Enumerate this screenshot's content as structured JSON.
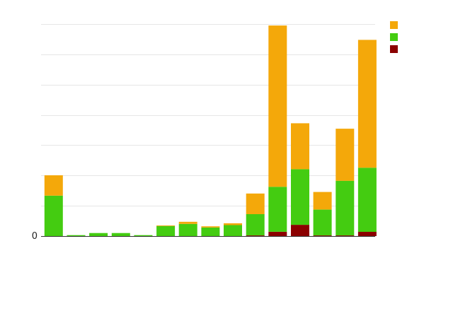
{
  "chart_data": {
    "type": "bar",
    "stacked": true,
    "title": "",
    "ylabel": "",
    "xlabel": "",
    "ylim": [
      0,
      7000
    ],
    "yticks": [
      {
        "value": 0,
        "label": "0"
      },
      {
        "value": 1000,
        "label": ""
      },
      {
        "value": 2000,
        "label": ""
      },
      {
        "value": 3000,
        "label": ""
      },
      {
        "value": 5000,
        "label": ""
      },
      {
        "value": 6000,
        "label": ""
      },
      {
        "value": 7000,
        "label": ""
      }
    ],
    "grid": true,
    "legend_position": "top-right",
    "categories": [
      "",
      "",
      "",
      "",
      "",
      "",
      "",
      "",
      "",
      "",
      "",
      "",
      "",
      "",
      "",
      ""
    ],
    "series": [
      {
        "name": "",
        "color": "#8b0000",
        "values": [
          0,
          0,
          0,
          0,
          0,
          0,
          0,
          0,
          0,
          20,
          140,
          370,
          20,
          20,
          140,
          20
        ]
      },
      {
        "name": "",
        "color": "#44cc11",
        "values": [
          1330,
          30,
          100,
          100,
          30,
          330,
          400,
          280,
          360,
          700,
          1480,
          1830,
          850,
          1800,
          2110,
          20
        ]
      },
      {
        "name": "",
        "color": "#f4a80a",
        "values": [
          670,
          0,
          0,
          0,
          0,
          20,
          70,
          40,
          60,
          680,
          5330,
          1520,
          580,
          1720,
          4230,
          20
        ]
      }
    ],
    "visible_bars": [
      true,
      true,
      true,
      true,
      true,
      true,
      true,
      true,
      true,
      true,
      true,
      true,
      true,
      true,
      true,
      false
    ],
    "bar_x_positions": [
      0,
      1,
      2,
      3,
      4,
      5,
      6,
      7,
      8,
      9,
      10,
      11,
      12,
      13,
      14,
      15
    ]
  }
}
